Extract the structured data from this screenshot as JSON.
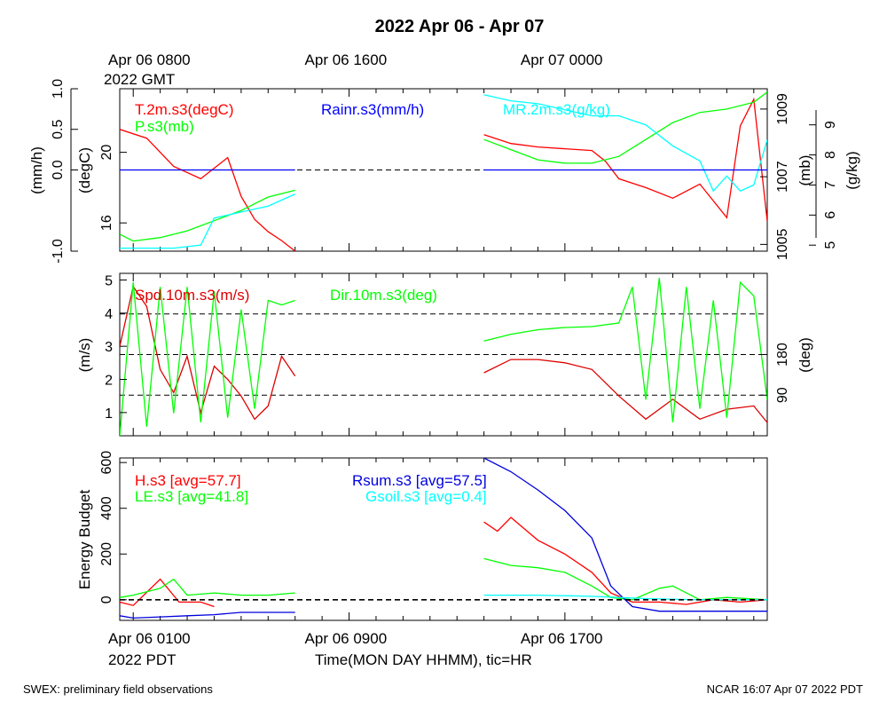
{
  "title": "2022 Apr 06 - Apr 07",
  "top_axis": {
    "date_labels": [
      {
        "line1": "Apr 06 0800",
        "line2": "2022 GMT"
      },
      {
        "line1": "Apr 06 1600",
        "line2": ""
      },
      {
        "line1": "Apr 07 0000",
        "line2": ""
      }
    ]
  },
  "bottom_axis": {
    "date_labels": [
      {
        "line1": "Apr 06 0100",
        "line2": "2022 PDT"
      },
      {
        "line1": "Apr 06 0900",
        "line2": ""
      },
      {
        "line1": "Apr 06 1700",
        "line2": ""
      }
    ],
    "xlabel": "Time(MON DAY HHMM), tic=HR"
  },
  "footer": {
    "left": "SWEX: preliminary field observations",
    "right": "NCAR 16:07 Apr 07 2022 PDT"
  },
  "colors": {
    "red": "#ff0000",
    "green": "#00ff00",
    "blue": "#0000ff",
    "cyan": "#00ffff",
    "darkred": "#dd0000",
    "darkblue": "#0000dd",
    "zero": "#000000"
  },
  "chart_data": [
    {
      "type": "line",
      "panel": "meteorology",
      "x_unit": "hours since Apr 06 0000 PDT",
      "xlim": [
        0.5,
        24.5
      ],
      "axes": {
        "rain": {
          "label": "(mm/h)",
          "ylim": [
            -1.0,
            1.0
          ],
          "ticks": [
            "-1.0",
            "0.0",
            "0.5",
            "1.0"
          ],
          "tick_values": [
            -1.0,
            0.0,
            0.5,
            1.0
          ]
        },
        "temp": {
          "label": "(degC)",
          "ylim": [
            14.4,
            23.6
          ],
          "ticks": [
            "16",
            "20"
          ],
          "tick_values": [
            16,
            20
          ]
        },
        "pres": {
          "label": "(mb)",
          "ylim": [
            1004.8,
            1009.6
          ],
          "ticks": [
            "1005",
            "1007",
            "1009"
          ],
          "tick_values": [
            1005,
            1007,
            1009
          ]
        },
        "mr": {
          "label": "(g/kg)",
          "ylim": [
            4.8,
            10.2
          ],
          "ticks": [
            "5",
            "6",
            "7",
            "8",
            "9"
          ],
          "tick_values": [
            5,
            6,
            7,
            8,
            9
          ]
        }
      },
      "legend": [
        {
          "text": "T.2m.s3(degC)",
          "color": "#ff0000"
        },
        {
          "text": "P.s3(mb)",
          "color": "#00ff00"
        },
        {
          "text": "Rainr.s3(mm/h)",
          "color": "#0000ff"
        },
        {
          "text": "MR.2m.s3(g/kg)",
          "color": "#00ffff"
        }
      ],
      "series": [
        {
          "name": "T.2m.s3(degC)",
          "axis": "temp",
          "color": "#ff0000",
          "x": [
            0.5,
            1.5,
            2.5,
            3.5,
            4.5,
            5.0,
            5.5,
            6.0,
            6.5,
            7.0
          ],
          "y": [
            21.3,
            20.8,
            19.2,
            18.5,
            19.7,
            17.5,
            16.2,
            15.5,
            15.0,
            14.4
          ]
        },
        {
          "name": "T.2m.s3(degC)",
          "axis": "temp",
          "color": "#ff0000",
          "x": [
            14.0,
            15.0,
            16.0,
            17.0,
            18.0,
            18.5,
            19.0,
            20.0,
            21.0,
            22.0,
            23.0,
            23.5,
            24.0,
            24.5
          ],
          "y": [
            21.0,
            20.5,
            20.3,
            20.2,
            20.1,
            19.5,
            18.5,
            18.0,
            17.4,
            18.2,
            16.3,
            21.5,
            23.0,
            16.1
          ]
        },
        {
          "name": "P.s3(mb)",
          "axis": "pres",
          "color": "#00ff00",
          "x": [
            0.5,
            1.0,
            2.0,
            3.0,
            4.0,
            5.0,
            6.0,
            7.0
          ],
          "y": [
            1005.3,
            1005.1,
            1005.2,
            1005.4,
            1005.7,
            1006.0,
            1006.4,
            1006.6
          ]
        },
        {
          "name": "P.s3(mb)",
          "axis": "pres",
          "color": "#00ff00",
          "x": [
            14.0,
            15.0,
            16.0,
            17.0,
            18.0,
            19.0,
            20.0,
            21.0,
            22.0,
            23.0,
            24.0,
            24.5
          ],
          "y": [
            1008.1,
            1007.8,
            1007.5,
            1007.4,
            1007.4,
            1007.6,
            1008.1,
            1008.6,
            1008.9,
            1009.0,
            1009.2,
            1009.5
          ]
        },
        {
          "name": "MR.2m.s3(g/kg)",
          "axis": "mr",
          "color": "#00ffff",
          "x": [
            0.5,
            1.5,
            2.5,
            3.5,
            4.0,
            5.0,
            6.0,
            7.0
          ],
          "y": [
            4.9,
            4.9,
            4.9,
            5.0,
            5.9,
            6.1,
            6.3,
            6.7
          ]
        },
        {
          "name": "MR.2m.s3(g/kg)",
          "axis": "mr",
          "color": "#00ffff",
          "x": [
            14.0,
            15.0,
            16.0,
            17.0,
            18.0,
            19.0,
            20.0,
            21.0,
            22.0,
            22.5,
            23.0,
            23.5,
            24.0,
            24.5
          ],
          "y": [
            10.0,
            9.8,
            9.7,
            9.5,
            9.3,
            9.3,
            9.0,
            8.3,
            7.8,
            6.8,
            7.3,
            6.8,
            7.0,
            8.5
          ]
        },
        {
          "name": "Rainr.s3(mm/h)",
          "axis": "rain",
          "color": "#0000ff",
          "x": [
            0.5,
            7.0
          ],
          "y": [
            0.0,
            0.0
          ]
        },
        {
          "name": "Rainr.s3(mm/h)",
          "axis": "rain",
          "color": "#0000ff",
          "x": [
            14.0,
            24.5
          ],
          "y": [
            0.0,
            0.0
          ]
        }
      ]
    },
    {
      "type": "line",
      "panel": "wind",
      "x_unit": "hours since Apr 06 0000 PDT",
      "xlim": [
        0.5,
        24.5
      ],
      "axes": {
        "spd": {
          "label": "(m/s)",
          "ylim": [
            0.3,
            5.2
          ],
          "ticks": [
            "1",
            "2",
            "3",
            "4",
            "5"
          ],
          "tick_values": [
            1,
            2,
            3,
            4,
            5
          ]
        },
        "dir": {
          "label": "(deg)",
          "ylim": [
            0,
            360
          ],
          "ticks": [
            "90",
            "180"
          ],
          "tick_values": [
            90,
            180
          ]
        }
      },
      "reference_lines": {
        "axis": "dir",
        "values": [
          90,
          180,
          270
        ]
      },
      "legend": [
        {
          "text": "Spd.10m.s3(m/s)",
          "color": "#dd0000"
        },
        {
          "text": "Dir.10m.s3(deg)",
          "color": "#00ff00"
        }
      ],
      "series": [
        {
          "name": "Spd.10m.s3(m/s)",
          "axis": "spd",
          "color": "#dd0000",
          "x": [
            0.5,
            1.0,
            1.5,
            2.0,
            2.5,
            3.0,
            3.5,
            4.0,
            4.5,
            5.0,
            5.5,
            6.0,
            6.5,
            7.0
          ],
          "y": [
            3.0,
            4.8,
            4.2,
            2.3,
            1.6,
            2.7,
            1.0,
            2.4,
            2.0,
            1.5,
            0.8,
            1.2,
            2.7,
            2.1
          ]
        },
        {
          "name": "Spd.10m.s3(m/s)",
          "axis": "spd",
          "color": "#dd0000",
          "x": [
            14.0,
            15.0,
            16.0,
            17.0,
            18.0,
            19.0,
            20.0,
            21.0,
            22.0,
            23.0,
            24.0,
            24.5
          ],
          "y": [
            2.2,
            2.6,
            2.6,
            2.5,
            2.3,
            1.5,
            0.8,
            1.4,
            0.8,
            1.1,
            1.2,
            0.7
          ]
        },
        {
          "name": "Dir.10m.s3(deg)",
          "axis": "dir",
          "color": "#00ff00",
          "x": [
            0.5,
            1.0,
            1.5,
            2.0,
            2.5,
            3.0,
            3.5,
            4.0,
            4.5,
            5.0,
            5.5,
            6.0,
            6.5,
            7.0
          ],
          "y": [
            0,
            340,
            20,
            330,
            50,
            330,
            30,
            320,
            40,
            280,
            60,
            300,
            290,
            300
          ]
        },
        {
          "name": "Dir.10m.s3(deg)",
          "axis": "dir",
          "color": "#00ff00",
          "x": [
            14.0,
            15.0,
            16.0,
            17.0,
            18.0,
            19.0,
            19.5,
            20.0,
            20.5,
            21.0,
            21.5,
            22.0,
            22.5,
            23.0,
            23.5,
            24.0,
            24.5
          ],
          "y": [
            210,
            225,
            235,
            240,
            242,
            250,
            330,
            80,
            350,
            30,
            330,
            60,
            300,
            40,
            340,
            310,
            80
          ]
        }
      ]
    },
    {
      "type": "line",
      "panel": "energy",
      "x_unit": "hours since Apr 06 0000 PDT",
      "xlim": [
        0.5,
        24.5
      ],
      "axes": {
        "flux": {
          "label": "Energy Budget",
          "ylim": [
            -90,
            620
          ],
          "ticks": [
            "0",
            "200",
            "400",
            "600"
          ],
          "tick_values": [
            0,
            200,
            400,
            600
          ]
        }
      },
      "reference_lines": {
        "axis": "flux",
        "values": [
          0
        ]
      },
      "legend": [
        {
          "text": "H.s3 [avg=57.7]",
          "color": "#ff0000"
        },
        {
          "text": "LE.s3 [avg=41.8]",
          "color": "#00ff00"
        },
        {
          "text": "Rsum.s3 [avg=57.5]",
          "color": "#0000dd"
        },
        {
          "text": "Gsoil.s3 [avg=0.4]",
          "color": "#00ffff"
        }
      ],
      "series": [
        {
          "name": "H.s3 [avg=57.7]",
          "axis": "flux",
          "color": "#ff0000",
          "x": [
            0.5,
            1.0,
            2.0,
            2.7,
            3.5,
            4.0
          ],
          "y": [
            -10,
            -25,
            90,
            -10,
            -10,
            -30
          ]
        },
        {
          "name": "H.s3 [avg=57.7]",
          "axis": "flux",
          "color": "#ff0000",
          "x": [
            14.0,
            14.5,
            15.0,
            16.0,
            17.0,
            18.0,
            18.7,
            19.5,
            20.5,
            21.5,
            22.5,
            23.5,
            24.5
          ],
          "y": [
            340,
            300,
            360,
            260,
            200,
            120,
            30,
            -10,
            -10,
            -20,
            0,
            -10,
            0
          ]
        },
        {
          "name": "LE.s3 [avg=41.8]",
          "axis": "flux",
          "color": "#00ff00",
          "x": [
            0.5,
            1.0,
            2.0,
            2.5,
            3.0,
            4.0,
            5.0,
            6.0,
            7.0
          ],
          "y": [
            10,
            20,
            50,
            90,
            20,
            30,
            20,
            20,
            30
          ]
        },
        {
          "name": "LE.s3 [avg=41.8]",
          "axis": "flux",
          "color": "#00ff00",
          "x": [
            14.0,
            15.0,
            16.0,
            17.0,
            18.0,
            18.7,
            19.5,
            20.5,
            21.0,
            22.0,
            23.0,
            24.5
          ],
          "y": [
            180,
            150,
            140,
            120,
            60,
            10,
            0,
            50,
            60,
            0,
            10,
            0
          ]
        },
        {
          "name": "Rsum.s3 [avg=57.5]",
          "axis": "flux",
          "color": "#0000dd",
          "x": [
            0.5,
            1.0,
            2.0,
            3.0,
            4.0,
            5.0,
            6.0,
            7.0
          ],
          "y": [
            -70,
            -80,
            -75,
            -70,
            -65,
            -55,
            -55,
            -55
          ]
        },
        {
          "name": "Rsum.s3 [avg=57.5]",
          "axis": "flux",
          "color": "#0000dd",
          "x": [
            14.0,
            15.0,
            16.0,
            17.0,
            18.0,
            18.7,
            19.5,
            20.5,
            21.5,
            22.5,
            23.5,
            24.5
          ],
          "y": [
            620,
            560,
            480,
            390,
            270,
            60,
            -30,
            -50,
            -50,
            -50,
            -50,
            -50
          ]
        },
        {
          "name": "Gsoil.s3 [avg=0.4]",
          "axis": "flux",
          "color": "#00ffff",
          "x": [
            14.0,
            16.0,
            18.0,
            19.0,
            20.0,
            22.0,
            24.5
          ],
          "y": [
            20,
            20,
            15,
            10,
            5,
            0,
            0
          ]
        }
      ]
    }
  ]
}
